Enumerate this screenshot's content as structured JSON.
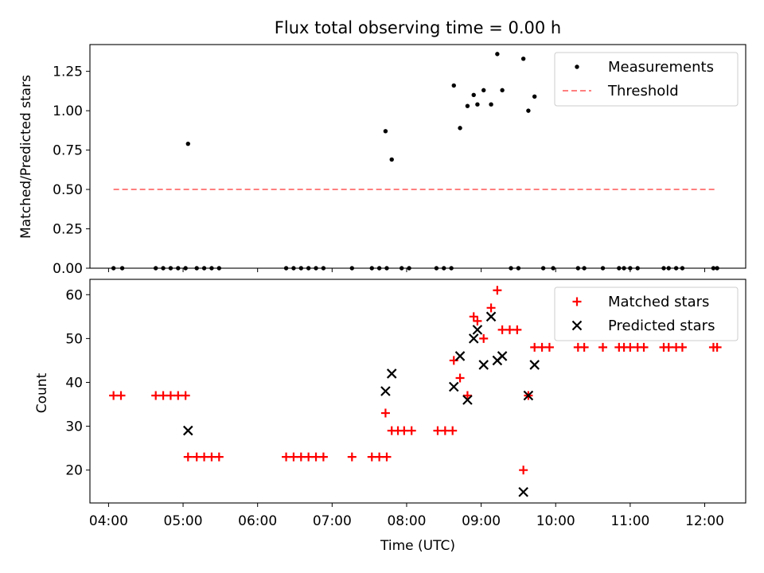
{
  "chart_data": [
    {
      "type": "scatter",
      "title": "Flux total observing time = 0.00 h",
      "xlabel": "",
      "ylabel": "Matched/Predicted stars",
      "x_unit": "time (UTC, hours)",
      "xlim": [
        "03:45",
        "12:33"
      ],
      "ylim": [
        0,
        1.42
      ],
      "yticks": [
        "0.00",
        "0.25",
        "0.50",
        "0.75",
        "1.00",
        "1.25"
      ],
      "legend_position": "top-right",
      "series": [
        {
          "name": "Measurements",
          "marker": "dot",
          "color": "#000000",
          "points": [
            [
              "04:04",
              0
            ],
            [
              "04:11",
              0
            ],
            [
              "04:38",
              0
            ],
            [
              "04:44",
              0
            ],
            [
              "04:50",
              0
            ],
            [
              "04:56",
              0
            ],
            [
              "05:02",
              0
            ],
            [
              "05:04",
              0.79
            ],
            [
              "05:11",
              0
            ],
            [
              "05:17",
              0
            ],
            [
              "05:23",
              0
            ],
            [
              "05:29",
              0
            ],
            [
              "06:23",
              0
            ],
            [
              "06:29",
              0
            ],
            [
              "06:35",
              0
            ],
            [
              "06:41",
              0
            ],
            [
              "06:47",
              0
            ],
            [
              "06:53",
              0
            ],
            [
              "07:16",
              0
            ],
            [
              "07:32",
              0
            ],
            [
              "07:38",
              0
            ],
            [
              "07:44",
              0
            ],
            [
              "07:43",
              0.87
            ],
            [
              "07:48",
              0.69
            ],
            [
              "07:56",
              0
            ],
            [
              "08:02",
              0
            ],
            [
              "08:24",
              0
            ],
            [
              "08:30",
              0
            ],
            [
              "08:36",
              0
            ],
            [
              "08:38",
              1.16
            ],
            [
              "08:43",
              0.89
            ],
            [
              "08:49",
              1.03
            ],
            [
              "08:54",
              1.1
            ],
            [
              "08:57",
              1.04
            ],
            [
              "09:02",
              1.13
            ],
            [
              "09:08",
              1.04
            ],
            [
              "09:13",
              1.36
            ],
            [
              "09:17",
              1.13
            ],
            [
              "09:24",
              0
            ],
            [
              "09:30",
              0
            ],
            [
              "09:34",
              1.33
            ],
            [
              "09:38",
              1.0
            ],
            [
              "09:43",
              1.09
            ],
            [
              "09:50",
              0
            ],
            [
              "09:58",
              0
            ],
            [
              "10:18",
              0
            ],
            [
              "10:23",
              0
            ],
            [
              "10:38",
              0
            ],
            [
              "10:51",
              0
            ],
            [
              "10:55",
              0
            ],
            [
              "11:00",
              0
            ],
            [
              "11:06",
              0
            ],
            [
              "11:27",
              0
            ],
            [
              "11:31",
              0
            ],
            [
              "11:37",
              0
            ],
            [
              "11:42",
              0
            ],
            [
              "12:07",
              0
            ],
            [
              "12:10",
              0
            ]
          ]
        },
        {
          "name": "Threshold",
          "line_style": "dashed",
          "color": "#ff7f7f",
          "points": [
            [
              "04:04",
              0.5
            ],
            [
              "12:10",
              0.5
            ]
          ]
        }
      ]
    },
    {
      "type": "scatter",
      "title": "",
      "xlabel": "Time (UTC)",
      "ylabel": "Count",
      "x_unit": "time (UTC, hours)",
      "xlim": [
        "03:45",
        "12:33"
      ],
      "ylim": [
        12.5,
        63.5
      ],
      "xticks": [
        "04:00",
        "05:00",
        "06:00",
        "07:00",
        "08:00",
        "09:00",
        "10:00",
        "11:00",
        "12:00"
      ],
      "yticks": [
        "20",
        "30",
        "40",
        "50",
        "60"
      ],
      "legend_position": "top-right",
      "series": [
        {
          "name": "Matched stars",
          "marker": "plus",
          "color": "#ff0000",
          "points": [
            [
              "04:04",
              37
            ],
            [
              "04:10",
              37
            ],
            [
              "04:38",
              37
            ],
            [
              "04:44",
              37
            ],
            [
              "04:50",
              37
            ],
            [
              "04:56",
              37
            ],
            [
              "05:02",
              37
            ],
            [
              "05:04",
              23
            ],
            [
              "05:11",
              23
            ],
            [
              "05:17",
              23
            ],
            [
              "05:23",
              23
            ],
            [
              "05:29",
              23
            ],
            [
              "06:23",
              23
            ],
            [
              "06:29",
              23
            ],
            [
              "06:35",
              23
            ],
            [
              "06:41",
              23
            ],
            [
              "06:47",
              23
            ],
            [
              "06:53",
              23
            ],
            [
              "07:16",
              23
            ],
            [
              "07:32",
              23
            ],
            [
              "07:38",
              23
            ],
            [
              "07:44",
              23
            ],
            [
              "07:43",
              33
            ],
            [
              "07:48",
              29
            ],
            [
              "07:53",
              29
            ],
            [
              "07:58",
              29
            ],
            [
              "08:04",
              29
            ],
            [
              "08:25",
              29
            ],
            [
              "08:31",
              29
            ],
            [
              "08:37",
              29
            ],
            [
              "08:38",
              45
            ],
            [
              "08:43",
              41
            ],
            [
              "08:49",
              37
            ],
            [
              "08:54",
              55
            ],
            [
              "08:57",
              54
            ],
            [
              "09:02",
              50
            ],
            [
              "09:08",
              57
            ],
            [
              "09:13",
              61
            ],
            [
              "09:17",
              52
            ],
            [
              "09:23",
              52
            ],
            [
              "09:29",
              52
            ],
            [
              "09:34",
              20
            ],
            [
              "09:38",
              37
            ],
            [
              "09:43",
              48
            ],
            [
              "09:49",
              48
            ],
            [
              "09:55",
              48
            ],
            [
              "10:18",
              48
            ],
            [
              "10:23",
              48
            ],
            [
              "10:38",
              48
            ],
            [
              "10:51",
              48
            ],
            [
              "10:55",
              48
            ],
            [
              "11:00",
              48
            ],
            [
              "11:06",
              48
            ],
            [
              "11:11",
              48
            ],
            [
              "11:27",
              48
            ],
            [
              "11:31",
              48
            ],
            [
              "11:37",
              48
            ],
            [
              "11:42",
              48
            ],
            [
              "12:07",
              48
            ],
            [
              "12:10",
              48
            ]
          ]
        },
        {
          "name": "Predicted stars",
          "marker": "x",
          "color": "#000000",
          "points": [
            [
              "05:04",
              29
            ],
            [
              "07:43",
              38
            ],
            [
              "07:48",
              42
            ],
            [
              "08:38",
              39
            ],
            [
              "08:43",
              46
            ],
            [
              "08:49",
              36
            ],
            [
              "08:54",
              50
            ],
            [
              "08:57",
              52
            ],
            [
              "09:02",
              44
            ],
            [
              "09:08",
              55
            ],
            [
              "09:13",
              45
            ],
            [
              "09:17",
              46
            ],
            [
              "09:34",
              15
            ],
            [
              "09:38",
              37
            ],
            [
              "09:43",
              44
            ]
          ]
        }
      ]
    }
  ]
}
